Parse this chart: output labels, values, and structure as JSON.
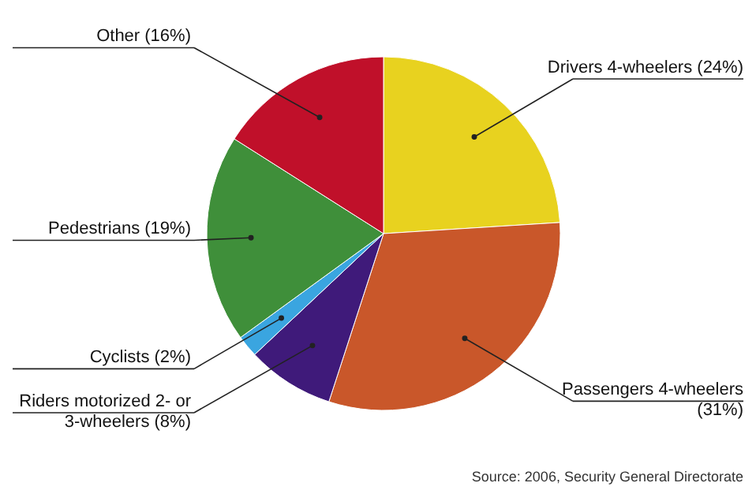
{
  "chart_data": {
    "type": "pie",
    "categories": [
      "Drivers 4-wheelers",
      "Passengers 4-wheelers",
      "Riders motorized 2- or 3-wheelers",
      "Cyclists",
      "Pedestrians",
      "Other"
    ],
    "values": [
      24,
      31,
      8,
      2,
      19,
      16
    ],
    "colors": [
      "#e8d21f",
      "#c9572a",
      "#3f1a7a",
      "#3aa5e0",
      "#3f8f3a",
      "#c0102a"
    ],
    "value_labels": [
      "(24%)",
      "(31%)",
      "(8%)",
      "(2%)",
      "(19%)",
      "(16%)"
    ],
    "annotations": [
      "Source: 2006, Security General Directorate"
    ]
  }
}
